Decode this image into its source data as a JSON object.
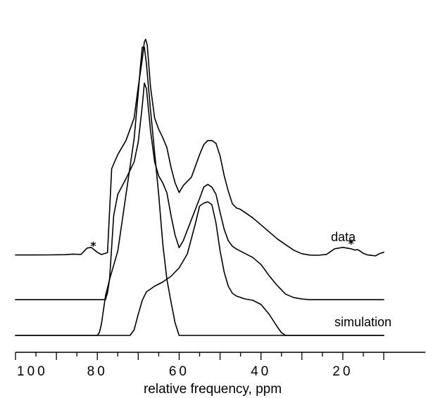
{
  "chart_data": {
    "type": "line",
    "title": "",
    "xlabel": "relative frequency, ppm",
    "ylabel": "",
    "xlim": [
      100,
      10
    ],
    "x_reversed": true,
    "xticks": [
      100,
      80,
      60,
      40,
      20
    ],
    "xtick_labels": [
      "100",
      "80",
      "60",
      "40",
      "20"
    ],
    "grid": false,
    "legend": "none",
    "series": [
      {
        "label": "data",
        "baseline": 0.62,
        "points": [
          [
            100,
            0.6
          ],
          [
            96,
            0.6
          ],
          [
            92,
            0.62
          ],
          [
            88,
            0.8
          ],
          [
            86,
            1.2
          ],
          [
            84,
            1.0
          ],
          [
            82.5,
            5.5
          ],
          [
            81.5,
            6.0
          ],
          [
            80,
            2.5
          ],
          [
            79,
            0.9
          ],
          [
            77.5,
            2.3
          ],
          [
            76.5,
            62
          ],
          [
            75,
            72
          ],
          [
            73,
            82
          ],
          [
            71,
            98
          ],
          [
            70,
            120
          ],
          [
            69,
            140
          ],
          [
            68.5,
            152
          ],
          [
            68.2,
            154
          ],
          [
            67.8,
            150
          ],
          [
            67,
            120
          ],
          [
            66,
            98
          ],
          [
            65,
            90
          ],
          [
            64,
            84
          ],
          [
            63,
            77
          ],
          [
            62,
            63
          ],
          [
            61,
            52
          ],
          [
            60,
            45
          ],
          [
            59,
            50
          ],
          [
            57,
            56
          ],
          [
            55,
            72
          ],
          [
            54,
            79
          ],
          [
            53,
            82
          ],
          [
            52,
            82
          ],
          [
            51,
            80
          ],
          [
            50,
            71
          ],
          [
            49,
            57
          ],
          [
            48,
            46
          ],
          [
            47,
            37
          ],
          [
            46,
            34
          ],
          [
            45,
            33
          ],
          [
            44,
            31
          ],
          [
            42,
            27
          ],
          [
            40,
            22
          ],
          [
            38,
            17
          ],
          [
            36,
            12
          ],
          [
            34,
            8
          ],
          [
            32,
            4
          ],
          [
            30,
            1.5
          ],
          [
            28,
            0.5
          ],
          [
            26,
            0.4
          ],
          [
            24,
            1.0
          ],
          [
            22,
            5.0
          ],
          [
            20,
            6.0
          ],
          [
            19,
            5.5
          ],
          [
            18,
            5.0
          ],
          [
            17,
            4.0
          ],
          [
            16.5,
            4.5
          ],
          [
            16,
            3.8
          ],
          [
            15,
            1.8
          ],
          [
            14,
            0.7
          ],
          [
            13,
            0.3
          ],
          [
            12,
            0.0
          ],
          [
            11,
            1.6
          ],
          [
            10,
            2.5
          ]
        ]
      },
      {
        "baseline": 0.4,
        "points": [
          [
            100,
            0
          ],
          [
            78,
            0
          ],
          [
            77.5,
            5
          ],
          [
            77,
            15
          ],
          [
            76,
            60
          ],
          [
            75,
            75
          ],
          [
            73,
            86
          ],
          [
            71,
            98
          ],
          [
            70,
            112
          ],
          [
            69,
            138
          ],
          [
            68.5,
            154
          ],
          [
            68,
            150
          ],
          [
            67,
            120
          ],
          [
            66,
            98
          ],
          [
            65,
            88
          ],
          [
            64,
            83
          ],
          [
            63,
            76
          ],
          [
            62,
            60
          ],
          [
            61,
            46
          ],
          [
            60,
            37
          ],
          [
            59,
            42
          ],
          [
            57,
            57
          ],
          [
            55,
            72
          ],
          [
            54,
            80
          ],
          [
            53,
            82
          ],
          [
            52,
            80
          ],
          [
            51,
            75
          ],
          [
            50,
            62
          ],
          [
            49,
            50
          ],
          [
            48,
            42
          ],
          [
            47,
            38
          ],
          [
            46,
            36
          ],
          [
            44,
            33
          ],
          [
            42,
            30
          ],
          [
            40,
            25
          ],
          [
            38,
            17
          ],
          [
            36,
            10
          ],
          [
            34,
            4
          ],
          [
            32,
            1.5
          ],
          [
            30,
            0.5
          ],
          [
            28,
            0
          ],
          [
            10,
            0
          ]
        ]
      },
      {
        "label": "simulation",
        "baseline": 0.0,
        "points": [
          [
            100,
            0
          ],
          [
            80,
            0
          ],
          [
            79.5,
            2
          ],
          [
            79,
            8
          ],
          [
            78,
            28
          ],
          [
            77,
            40
          ],
          [
            75,
            60
          ],
          [
            73,
            100
          ],
          [
            72,
            120
          ],
          [
            71,
            140
          ],
          [
            70,
            172
          ],
          [
            69.5,
            190
          ],
          [
            69,
            205
          ],
          [
            68.5,
            205
          ],
          [
            68,
            193
          ],
          [
            67,
            160
          ],
          [
            66,
            130
          ],
          [
            65,
            100
          ],
          [
            64,
            65
          ],
          [
            63,
            40
          ],
          [
            62,
            24
          ],
          [
            61,
            9
          ],
          [
            60,
            0
          ],
          [
            10,
            0
          ]
        ]
      },
      {
        "baseline": 0.0,
        "points": [
          [
            100,
            0
          ],
          [
            72,
            0
          ],
          [
            71,
            4
          ],
          [
            70,
            15
          ],
          [
            69,
            25
          ],
          [
            68,
            31
          ],
          [
            66,
            35
          ],
          [
            64,
            38
          ],
          [
            62,
            42
          ],
          [
            60,
            48
          ],
          [
            58,
            58
          ],
          [
            56,
            80
          ],
          [
            55,
            92
          ],
          [
            54,
            94
          ],
          [
            53,
            95
          ],
          [
            52,
            93
          ],
          [
            51,
            80
          ],
          [
            50,
            60
          ],
          [
            49,
            45
          ],
          [
            48,
            35
          ],
          [
            47,
            30
          ],
          [
            46,
            28
          ],
          [
            44,
            26
          ],
          [
            42,
            25
          ],
          [
            40,
            22
          ],
          [
            38,
            15
          ],
          [
            36,
            6
          ],
          [
            35,
            2
          ],
          [
            34,
            0
          ],
          [
            10,
            0
          ]
        ]
      }
    ],
    "annotations": [
      {
        "text": "data"
      },
      {
        "text": "simulation"
      },
      {
        "text": "*",
        "x": 81
      },
      {
        "text": "*",
        "x": 18
      }
    ]
  }
}
